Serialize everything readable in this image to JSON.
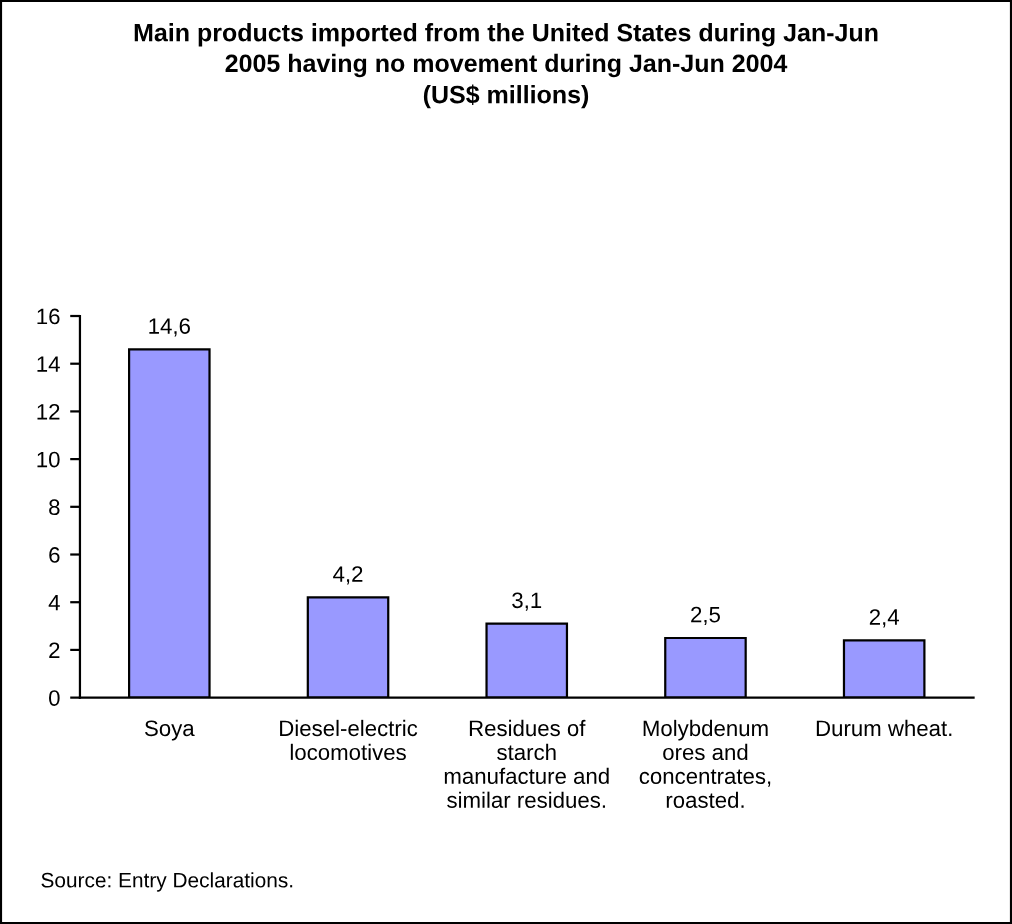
{
  "chart_data": {
    "type": "bar",
    "title": "Main products imported from the United States during Jan-Jun\n2005 having no movement during Jan-Jun 2004\n(US$ millions)",
    "categories": [
      "Soya",
      "Diesel-electric\nlocomotives",
      "Residues of\nstarch\nmanufacture and\nsimilar residues.",
      "Molybdenum\nores and\nconcentrates,\nroasted.",
      "Durum wheat."
    ],
    "values": [
      14.6,
      4.2,
      3.1,
      2.5,
      2.4
    ],
    "value_labels": [
      "14,6",
      "4,2",
      "3,1",
      "2,5",
      "2,4"
    ],
    "color": "#9999ff",
    "ylim": [
      0,
      16
    ],
    "yticks": [
      0,
      2,
      4,
      6,
      8,
      10,
      12,
      14,
      16
    ],
    "grid": false,
    "legend": false,
    "annotations": [
      "Source: Entry Declarations."
    ]
  }
}
